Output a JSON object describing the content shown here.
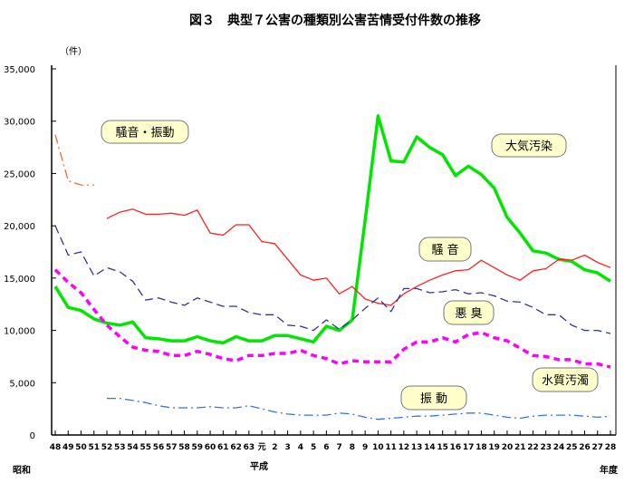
{
  "chart_data": {
    "type": "line",
    "title": "図３　典型７公害の種類別公害苦情受付件数の推移",
    "ylabel": "（件）",
    "xlabel": "年度",
    "era_labels": [
      "昭和",
      "平成"
    ],
    "ylim": [
      0,
      35000
    ],
    "yticks": [
      "0",
      "5,000",
      "10,000",
      "15,000",
      "20,000",
      "25,000",
      "30,000",
      "35,000"
    ],
    "grid": false,
    "categories": [
      "48",
      "49",
      "50",
      "51",
      "52",
      "53",
      "54",
      "55",
      "56",
      "57",
      "58",
      "59",
      "60",
      "61",
      "62",
      "63",
      "元",
      "2",
      "3",
      "4",
      "5",
      "6",
      "7",
      "8",
      "9",
      "10",
      "11",
      "12",
      "13",
      "14",
      "15",
      "16",
      "17",
      "18",
      "19",
      "20",
      "21",
      "22",
      "23",
      "24",
      "25",
      "26",
      "27",
      "28"
    ],
    "series": [
      {
        "name": "大気汚染",
        "color": "#00e600",
        "style": "solid-thick",
        "values": [
          14200,
          12200,
          11900,
          11100,
          10700,
          10500,
          10800,
          9300,
          9200,
          9000,
          9000,
          9400,
          9000,
          8800,
          9400,
          9000,
          9000,
          9500,
          9500,
          9200,
          8900,
          10400,
          10000,
          11000,
          20500,
          30500,
          26200,
          26100,
          28500,
          27500,
          26800,
          24800,
          25700,
          24900,
          23600,
          20800,
          19300,
          17600,
          17400,
          16800,
          16600,
          15800,
          15500,
          14700
        ]
      },
      {
        "name": "騒音・振動",
        "color": "#ff6633",
        "style": "dashdot",
        "values": [
          28700,
          24300,
          23900,
          23900,
          null,
          null,
          null,
          null,
          null,
          null,
          null,
          null,
          null,
          null,
          null,
          null,
          null,
          null,
          null,
          null,
          null,
          null,
          null,
          null,
          null,
          null,
          null,
          null,
          null,
          null,
          null,
          null,
          null,
          null,
          null,
          null,
          null,
          null,
          null,
          null,
          null,
          null,
          null,
          null
        ]
      },
      {
        "name": "騒 音",
        "color": "#ff2020",
        "style": "solid",
        "values": [
          null,
          null,
          null,
          null,
          20700,
          21300,
          21600,
          21100,
          21100,
          21200,
          21000,
          21500,
          19300,
          19100,
          20100,
          20100,
          18500,
          18300,
          16800,
          15300,
          14800,
          15000,
          13500,
          14200,
          13000,
          12600,
          12400,
          13500,
          14200,
          14800,
          15300,
          15700,
          15800,
          16700,
          16000,
          15300,
          14800,
          15700,
          15900,
          16800,
          16700,
          17200,
          16500,
          16000
        ]
      },
      {
        "name": "悪 臭",
        "color": "#333399",
        "style": "dashed",
        "values": [
          20000,
          17200,
          17500,
          15200,
          16000,
          15600,
          14700,
          12900,
          13100,
          12700,
          12400,
          13100,
          12700,
          12300,
          12300,
          11700,
          11500,
          11500,
          10500,
          10400,
          10000,
          11000,
          10100,
          11000,
          12100,
          13100,
          11800,
          14000,
          14000,
          13600,
          13700,
          13900,
          13500,
          13600,
          13300,
          12800,
          12700,
          12200,
          11500,
          11500,
          10500,
          10000,
          10000,
          9700
        ]
      },
      {
        "name": "水質汚濁",
        "color": "#ff00ff",
        "style": "dashed-thick",
        "values": [
          15800,
          14600,
          13600,
          12000,
          10500,
          9400,
          8400,
          8100,
          8000,
          7600,
          7600,
          8000,
          7700,
          7300,
          7100,
          7600,
          7600,
          7800,
          7800,
          8100,
          7600,
          7300,
          6800,
          7100,
          7000,
          7000,
          7000,
          8200,
          8900,
          8900,
          9300,
          8900,
          9600,
          9800,
          9300,
          9000,
          8300,
          7600,
          7500,
          7200,
          7200,
          6800,
          6800,
          6500
        ]
      },
      {
        "name": "振 動",
        "color": "#3377dd",
        "style": "dashdot",
        "values": [
          null,
          null,
          null,
          null,
          3500,
          3500,
          3300,
          3100,
          2800,
          2600,
          2600,
          2600,
          2700,
          2600,
          2600,
          2800,
          2500,
          2200,
          2000,
          1900,
          1900,
          1900,
          2100,
          2000,
          1700,
          1500,
          1600,
          1700,
          1800,
          1800,
          1900,
          2000,
          2100,
          2100,
          1900,
          1700,
          1600,
          1800,
          1900,
          1900,
          1900,
          1800,
          1700,
          1800
        ]
      }
    ],
    "label_box_color": "#ffffcc"
  }
}
